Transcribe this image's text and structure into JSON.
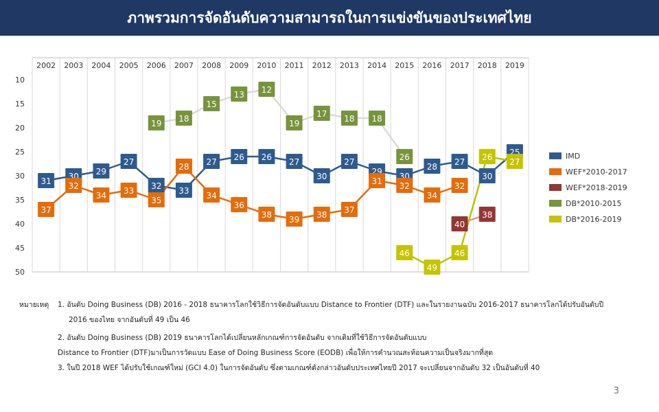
{
  "title": "ภาพรวมการจัดอันดับความสามารถในการแข่งขันของประเทศไทย",
  "page_number": "3",
  "notes": {
    "label": "หมายเหตุ",
    "items": [
      "1. อันดับ Doing Business (DB) 2016 - 2018 ธนาคารโลกใช้วิธีการจัดอันดับแบบ Distance to Frontier (DTF) และในรายงานฉบับ 2016-2017 ธนาคารโลกได้ปรับอันดับปี",
      "2016 ของไทย จากอันดับที่ 49 เป็น 46",
      "2. อันดับ Doing Business (DB) 2019 ธนาคารโลกได้เปลี่ยนหลักเกณฑ์การจัดอันดับ จากเดิมที่ใช้วิธีการจัดอันดับแบบ",
      "Distance to Frontier (DTF)มาเป็นการวัดแบบ Ease of Doing Business Score (EODB) เพื่อให้การคำนวณสะท้อนความเป็นจริงมากที่สุด",
      "3. ในปี 2018 WEF ได้ปรับใช้เกณฑ์ใหม่ (GCI 4.0) ในการจัดอันดับ ซึ่งตามเกณฑ์ดังกล่าวอันดับประเทศไทยปี 2017 จะเปลี่ยนจากอันดับ 32 เป็นอันดับที่ 40"
    ]
  },
  "chart_data": {
    "type": "line",
    "x": [
      "2002",
      "2003",
      "2004",
      "2005",
      "2006",
      "2007",
      "2008",
      "2009",
      "2010",
      "2011",
      "2012",
      "2013",
      "2014",
      "2015",
      "2016",
      "2017",
      "2018",
      "2019"
    ],
    "y_ticks": [
      10,
      15,
      20,
      25,
      30,
      35,
      40,
      45,
      50
    ],
    "ylim": [
      10,
      50
    ],
    "y_inverted": true,
    "grid": "vertical",
    "legend_position": "right",
    "series": [
      {
        "name": "IMD",
        "color": "#2e5a8e",
        "line_color": "#2e5a8e",
        "values": [
          31,
          30,
          29,
          27,
          32,
          33,
          27,
          26,
          26,
          27,
          30,
          27,
          29,
          30,
          28,
          27,
          30,
          25
        ]
      },
      {
        "name": "WEF*2010-2017",
        "color": "#e46c0a",
        "line_color": "#e46c0a",
        "values": [
          37,
          32,
          34,
          33,
          35,
          28,
          34,
          36,
          38,
          39,
          38,
          37,
          31,
          32,
          34,
          32,
          null,
          null
        ]
      },
      {
        "name": "WEF*2018-2019",
        "color": "#943634",
        "line_color": "#d99694",
        "values": [
          null,
          null,
          null,
          null,
          null,
          null,
          null,
          null,
          null,
          null,
          null,
          null,
          null,
          null,
          null,
          40,
          38,
          null
        ]
      },
      {
        "name": "DB*2010-2015",
        "color": "#77933c",
        "line_color": "#d9d9d9",
        "values": [
          null,
          null,
          null,
          null,
          19,
          18,
          15,
          13,
          12,
          19,
          17,
          18,
          18,
          26,
          null,
          null,
          null,
          null
        ]
      },
      {
        "name": "DB*2016-2019",
        "color": "#c4c400",
        "line_color": "#b8c400",
        "values": [
          null,
          null,
          null,
          null,
          null,
          null,
          null,
          null,
          null,
          null,
          null,
          null,
          null,
          46,
          49,
          46,
          26,
          27
        ]
      }
    ]
  }
}
